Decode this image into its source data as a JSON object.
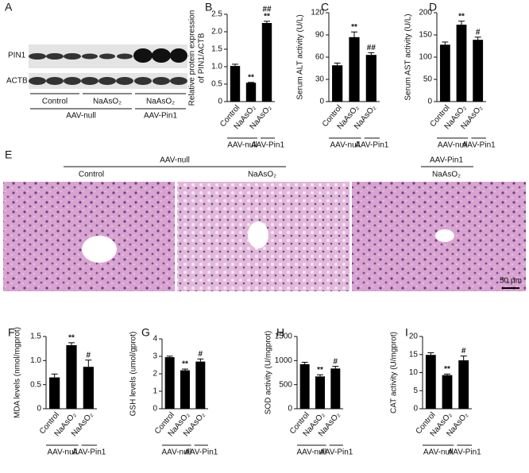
{
  "panel_A": {
    "label": "A",
    "rows": [
      "PIN1",
      "ACTB"
    ],
    "lanes": [
      "Control",
      "NaAsO₂",
      "NaAsO₂"
    ],
    "groups": [
      "AAV-null",
      "AAV-Pin1"
    ]
  },
  "panel_E": {
    "label": "E",
    "groups": [
      "AAV-null",
      "AAV-Pin1"
    ],
    "lanes": [
      "Control",
      "NaAsO₂",
      "NaAsO₂"
    ],
    "scale_bar": "50 μm"
  },
  "chart_data": [
    {
      "type": "bar",
      "label": "B",
      "ylabel": [
        "Relative protein expression",
        "of PIN1/ACTB"
      ],
      "categories": [
        "Control",
        "NaAsO₂",
        "NaAsO₂"
      ],
      "groups": [
        "AAV-null",
        "AAV-Pin1"
      ],
      "values": [
        1.02,
        0.54,
        2.25
      ],
      "errors": [
        0.05,
        0.01,
        0.05
      ],
      "annotations": [
        [],
        [
          "**"
        ],
        [
          "##",
          "**"
        ]
      ],
      "color": "#000000",
      "ylim": [
        0,
        2.5
      ],
      "yticks": [
        0,
        0.5,
        {
          "value": 1,
          "label": "1.0"
        },
        1.5,
        {
          "value": 2,
          "label": "2.0"
        },
        2.5
      ]
    },
    {
      "type": "bar",
      "label": "C",
      "ylabel": "Serum ALT activity (U/L)",
      "categories": [
        "Control",
        "NaAsO₂",
        "NaAsO₂"
      ],
      "groups": [
        "AAV-null",
        "AAV-Pin1"
      ],
      "values": [
        49,
        87,
        63
      ],
      "errors": [
        3,
        7,
        3
      ],
      "annotations": [
        [],
        [
          "**"
        ],
        [
          "##"
        ]
      ],
      "color": "#000000",
      "ylim": [
        0,
        120
      ],
      "yticks": [
        0,
        30,
        60,
        90,
        120
      ]
    },
    {
      "type": "bar",
      "label": "D",
      "ylabel": "Serum AST activity (U/L)",
      "categories": [
        "Control",
        "NaAsO₂",
        "NaAsO₂"
      ],
      "groups": [
        "AAV-null",
        "AAV-Pin1"
      ],
      "values": [
        128,
        173,
        139
      ],
      "errors": [
        6,
        8,
        6
      ],
      "annotations": [
        [],
        [
          "**"
        ],
        [
          "#"
        ]
      ],
      "color": "#000000",
      "ylim": [
        0,
        200
      ],
      "yticks": [
        0,
        50,
        100,
        150,
        200
      ]
    },
    {
      "type": "bar",
      "label": "F",
      "ylabel": "MDA levels (nmol/mgprot)",
      "categories": [
        "Control",
        "NaAsO₂",
        "NaAsO₂"
      ],
      "groups": [
        "AAV-null",
        "AAV-Pin1"
      ],
      "values": [
        0.65,
        1.32,
        0.87
      ],
      "errors": [
        0.07,
        0.05,
        0.14
      ],
      "annotations": [
        [],
        [
          "**"
        ],
        [
          "#"
        ]
      ],
      "color": "#000000",
      "ylim": [
        0,
        1.5
      ],
      "yticks": [
        0,
        0.5,
        {
          "value": 1,
          "label": "1.0"
        },
        1.5
      ]
    },
    {
      "type": "bar",
      "label": "G",
      "ylabel": "GSH levels (umol/gprot)",
      "categories": [
        "Control",
        "NaAsO₂",
        "NaAsO₂"
      ],
      "groups": [
        "AAV-null",
        "AAV-Pin1"
      ],
      "values": [
        2.95,
        2.2,
        2.7
      ],
      "errors": [
        0.06,
        0.07,
        0.15
      ],
      "annotations": [
        [],
        [
          "**"
        ],
        [
          "#"
        ]
      ],
      "color": "#000000",
      "ylim": [
        0,
        4
      ],
      "yticks": [
        0,
        1,
        2,
        3,
        4
      ]
    },
    {
      "type": "bar",
      "label": "H",
      "ylabel": "SOD activity (U/mgprot)",
      "categories": [
        "Control",
        "NaAsO₂",
        "NaAsO₂"
      ],
      "groups": [
        "AAV-null",
        "AAV-Pin1"
      ],
      "values": [
        925,
        670,
        835
      ],
      "errors": [
        40,
        35,
        45
      ],
      "annotations": [
        [],
        [
          "**"
        ],
        [
          "#"
        ]
      ],
      "color": "#000000",
      "ylim": [
        0,
        1500
      ],
      "yticks": [
        0,
        500,
        1000,
        1500
      ]
    },
    {
      "type": "bar",
      "label": "I",
      "ylabel": "CAT activity (U/mgprot)",
      "categories": [
        "Control",
        "NaAsO₂",
        "NaAsO₂"
      ],
      "groups": [
        "AAV-null",
        "AAV-Pin1"
      ],
      "values": [
        14.9,
        9.3,
        13.4
      ],
      "errors": [
        0.6,
        0.3,
        1.2
      ],
      "annotations": [
        [],
        [
          "**"
        ],
        [
          "#"
        ]
      ],
      "color": "#000000",
      "ylim": [
        0,
        20
      ],
      "yticks": [
        0,
        5,
        10,
        15,
        20
      ]
    }
  ]
}
